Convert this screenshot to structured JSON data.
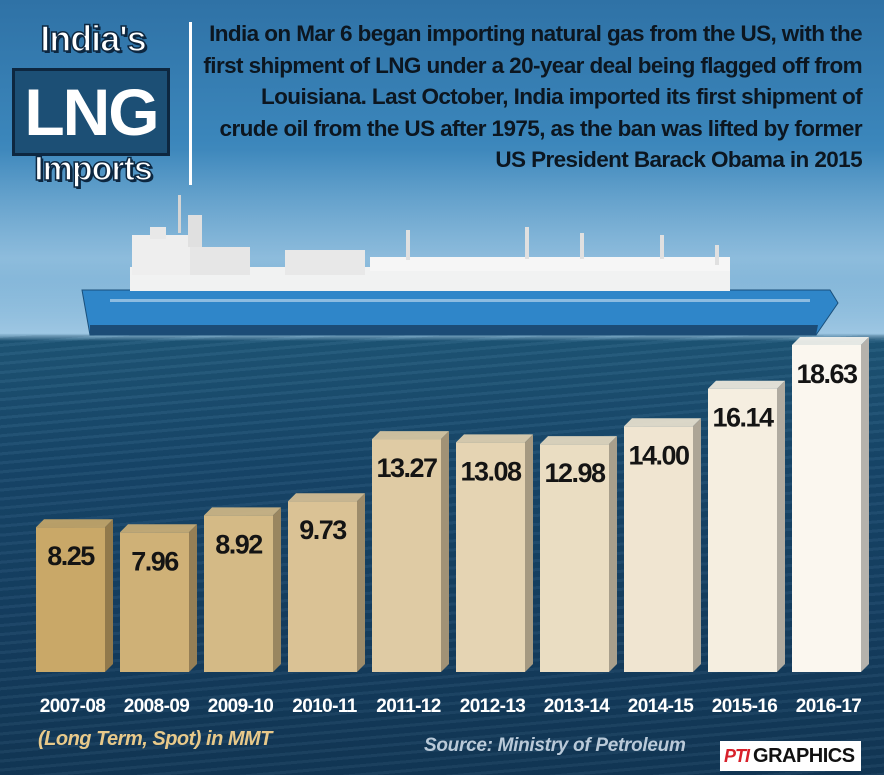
{
  "title": {
    "line1": "India's",
    "line2": "LNG",
    "line3": "Imports"
  },
  "intro_text": "India on Mar 6 began importing natural gas from the US, with the first shipment of LNG under a 20-year deal being flagged off from Louisiana. Last October, India imported its first shipment of crude oil from the US after 1975, as the ban was lifted by former US President Barack Obama in 2015",
  "colors": {
    "bar_first": "#c9a868",
    "bar_last": "#fbf7ef",
    "label_text": "#ffffff",
    "note_text": "#e8c98a"
  },
  "chart_data": {
    "type": "bar",
    "title": "India's LNG Imports",
    "categories": [
      "2007-08",
      "2008-09",
      "2009-10",
      "2010-11",
      "2011-12",
      "2012-13",
      "2013-14",
      "2014-15",
      "2015-16",
      "2016-17"
    ],
    "values": [
      8.25,
      7.96,
      8.92,
      9.73,
      13.27,
      13.08,
      12.98,
      14.0,
      16.14,
      18.63
    ],
    "value_labels": [
      "8.25",
      "7.96",
      "8.92",
      "9.73",
      "13.27",
      "13.08",
      "12.98",
      "14.00",
      "16.14",
      "18.63"
    ],
    "ylim": [
      0,
      18.63
    ],
    "grid": false,
    "legend": "none",
    "unit_note": "(Long Term, Spot) in MMT"
  },
  "source": "Source:  Ministry of Petroleum",
  "logo": {
    "pti": "PTI",
    "graphics": "GRAPHICS"
  }
}
